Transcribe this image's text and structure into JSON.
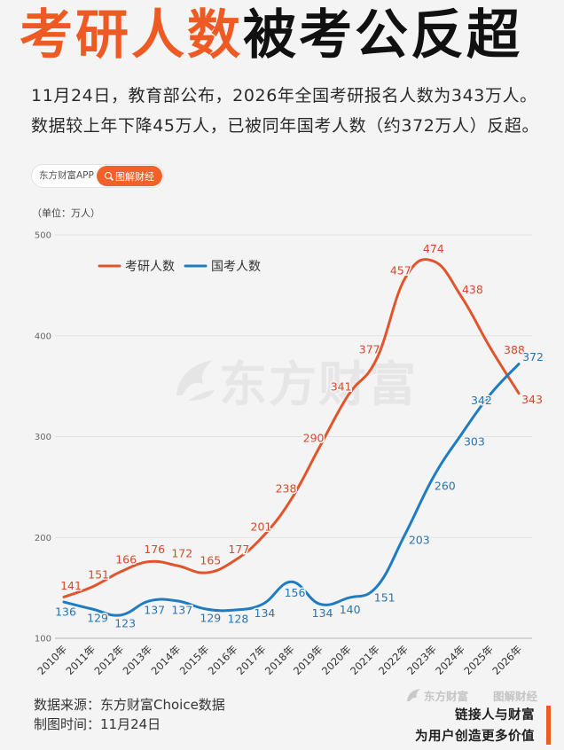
{
  "title": {
    "highlight": "考研人数",
    "rest": "被考公反超"
  },
  "subtitle": {
    "line1": "11月24日，教育部公布，2026年全国考研报名人数为343万人。",
    "line2": "数据较上年下降45万人，已被同年国考人数（约372万人）反超。"
  },
  "tag": {
    "app": "东方财富APP",
    "channel": "图解财经",
    "channel_icon": "search-icon"
  },
  "chart_data": {
    "type": "line",
    "title": "",
    "xlabel": "",
    "ylabel": "（单位：万人）",
    "categories": [
      "2010年",
      "2011年",
      "2012年",
      "2013年",
      "2014年",
      "2015年",
      "2016年",
      "2017年",
      "2018年",
      "2019年",
      "2020年",
      "2021年",
      "2022年",
      "2023年",
      "2024年",
      "2025年",
      "2026年"
    ],
    "series": [
      {
        "name": "考研人数",
        "color": "#e0552c",
        "label_color": "#d8492a",
        "values": [
          141,
          151,
          166,
          176,
          172,
          165,
          177,
          201,
          238,
          290,
          341,
          377,
          457,
          474,
          438,
          388,
          343
        ]
      },
      {
        "name": "国考人数",
        "color": "#1f7cc0",
        "label_color": "#2a74b3",
        "values": [
          136,
          129,
          123,
          137,
          137,
          129,
          128,
          134,
          156,
          134,
          140,
          151,
          203,
          260,
          303,
          342,
          372
        ]
      }
    ],
    "ylim": [
      100,
      500
    ],
    "yticks": [
      100,
      200,
      300,
      400,
      500
    ],
    "grid": true,
    "smooth": true,
    "legend": "top-left"
  },
  "watermark": {
    "center": "东方财富",
    "corner_brand": "东方财富",
    "corner_channel": "图解财经",
    "logo_icon": "brand-logo-icon"
  },
  "footer": {
    "source": "数据来源：东方财富Choice数据",
    "time": "制图时间：11月24日",
    "slogan_line1": "链接人与财富",
    "slogan_line2": "为用户创造更多价值"
  },
  "colors": {
    "accent": "#ee5a24",
    "background": "#f4f4f4",
    "text": "#222222"
  }
}
